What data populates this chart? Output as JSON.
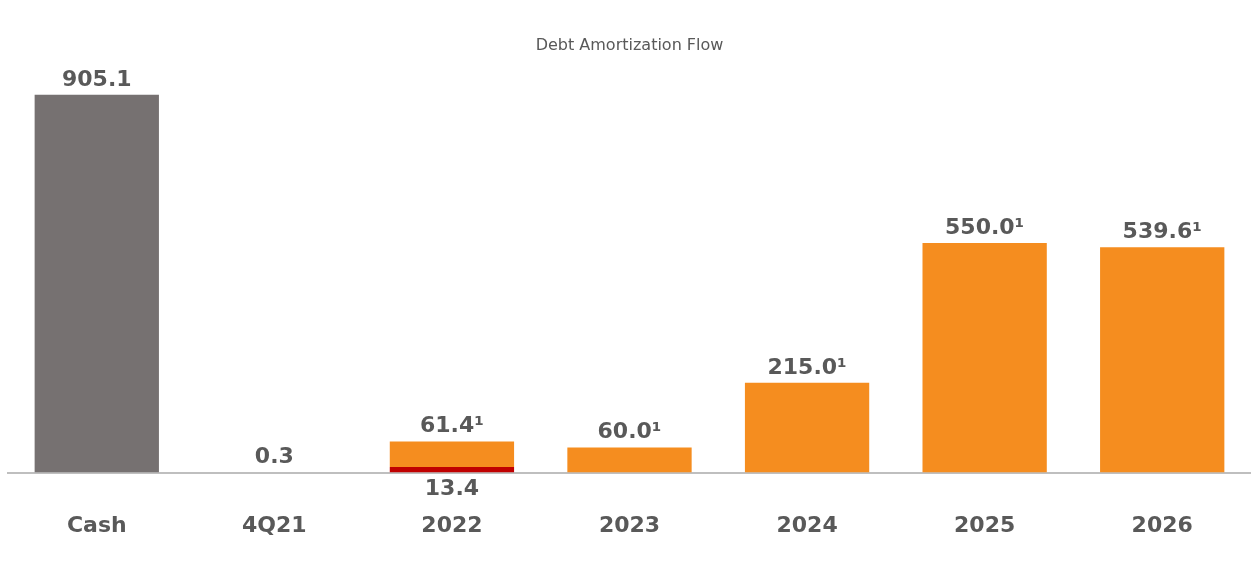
{
  "chart_data": {
    "type": "bar",
    "title": "Debt Amortization Flow",
    "categories": [
      "Cash",
      "4Q21",
      "2022",
      "2023",
      "2024",
      "2025",
      "2026"
    ],
    "stacked": true,
    "tick_labels": "x",
    "legend": false,
    "series": [
      {
        "color": "#c00000",
        "values": [
          null,
          null,
          13.4,
          null,
          null,
          null,
          null
        ],
        "value_labels": [
          null,
          null,
          "13.4",
          null,
          null,
          null,
          null
        ]
      },
      {
        "colors": [
          "#767171",
          "#f58d1f",
          "#f58d1f",
          "#f58d1f",
          "#f58d1f",
          "#f58d1f",
          "#f58d1f"
        ],
        "values": [
          905.1,
          0.3,
          61.4,
          60.0,
          215.0,
          550.0,
          539.6
        ],
        "value_labels": [
          "905.1",
          "0.3",
          "61.4¹",
          "60.0¹",
          "215.0¹",
          "550.0¹",
          "539.6¹"
        ]
      }
    ]
  }
}
